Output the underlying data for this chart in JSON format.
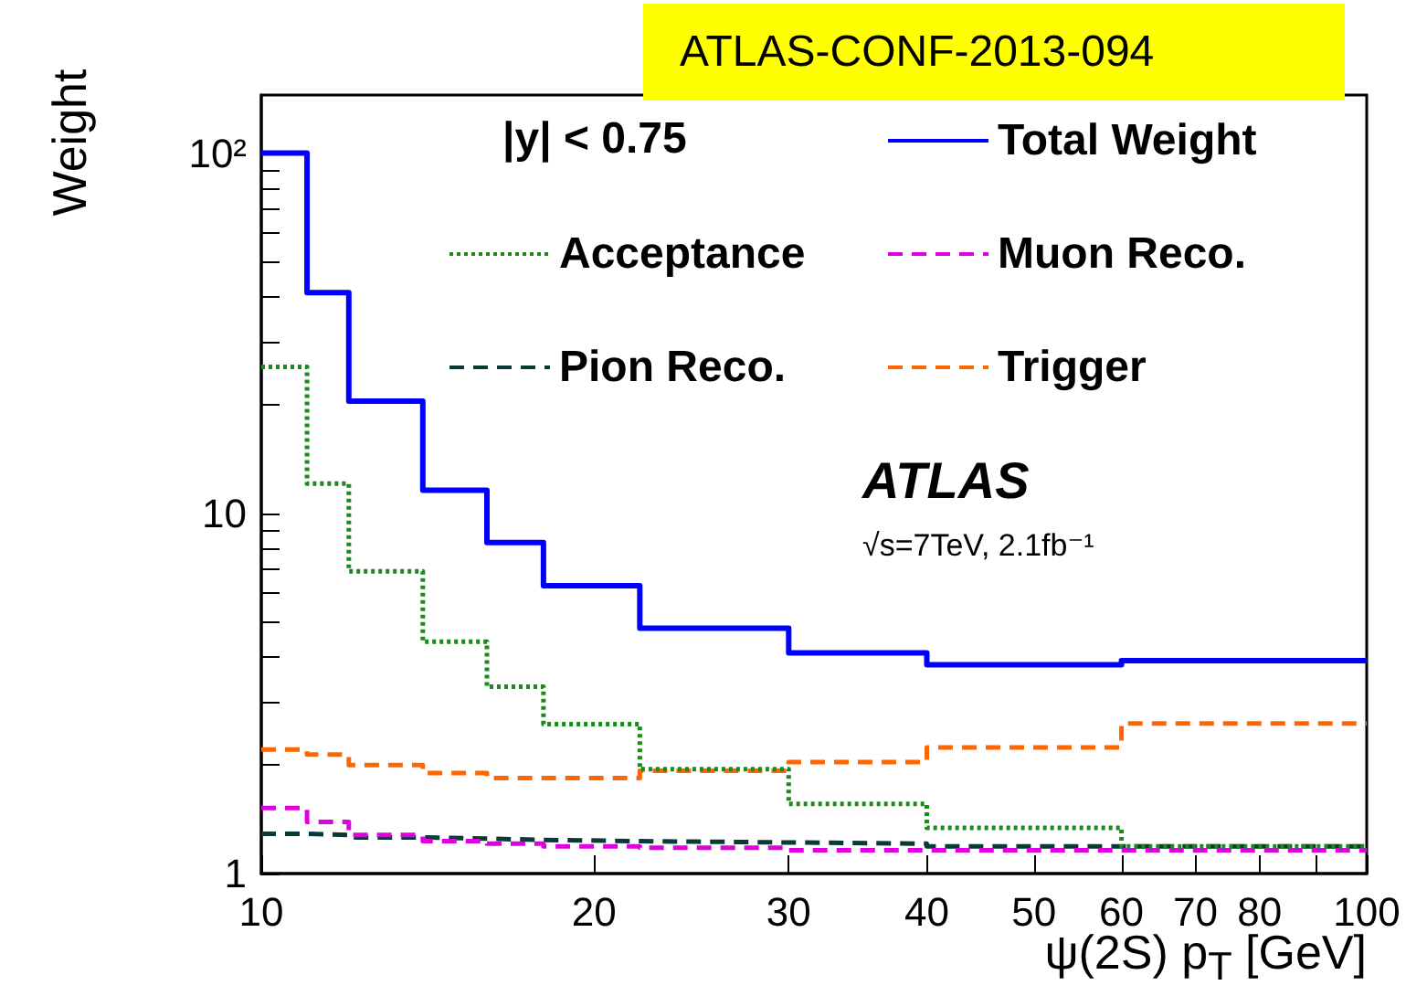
{
  "chart_data": {
    "type": "histogram",
    "xlabel": "ψ(2S) p$_{T}$ [GeV]",
    "ylabel": "Weight",
    "annotations": [
      "ATLAS-CONF-2013-094",
      "|y| < 0.75",
      "ATLAS",
      "√s=7TeV, 2.1fb⁻¹"
    ],
    "bins": [
      10,
      11,
      12,
      14,
      16,
      18,
      22,
      30,
      40,
      60,
      100
    ],
    "series": [
      {
        "name": "Total Weight",
        "color": "#0000ff",
        "line_style": "solid",
        "values": [
          100,
          41,
          20.5,
          11.6,
          8.3,
          6.3,
          4.8,
          4.1,
          3.8,
          3.9
        ]
      },
      {
        "name": "Acceptance",
        "color": "#1a8a1a",
        "line_style": "dotted",
        "values": [
          25.5,
          12.1,
          6.9,
          4.4,
          3.3,
          2.6,
          1.95,
          1.56,
          1.34,
          1.19
        ]
      },
      {
        "name": "Muon Reco.",
        "color": "#e000e0",
        "line_style": "dashed",
        "values": [
          1.52,
          1.39,
          1.28,
          1.23,
          1.21,
          1.19,
          1.18,
          1.16,
          1.16,
          1.16
        ]
      },
      {
        "name": "Pion Reco.",
        "color": "#0a3a36",
        "line_style": "dashed",
        "values": [
          1.29,
          1.28,
          1.26,
          1.25,
          1.24,
          1.23,
          1.22,
          1.21,
          1.19,
          1.19
        ]
      },
      {
        "name": "Trigger",
        "color": "#ff6600",
        "line_style": "dashed",
        "values": [
          2.21,
          2.14,
          2.0,
          1.9,
          1.84,
          1.84,
          1.93,
          2.04,
          2.24,
          2.61
        ]
      }
    ],
    "log": "xy",
    "xlim": [
      10,
      100
    ],
    "ylim": [
      1,
      145
    ],
    "xticks": [
      10,
      20,
      30,
      40,
      50,
      60,
      70,
      80,
      {
        "value": 90,
        "label": null
      },
      100
    ],
    "yticks": [
      1,
      {
        "value": 2,
        "label": null
      },
      {
        "value": 3,
        "label": null
      },
      {
        "value": 4,
        "label": null
      },
      {
        "value": 5,
        "label": null
      },
      {
        "value": 6,
        "label": null
      },
      {
        "value": 7,
        "label": null
      },
      {
        "value": 8,
        "label": null
      },
      {
        "value": 9,
        "label": null
      },
      10,
      {
        "value": 20,
        "label": null
      },
      {
        "value": 30,
        "label": null
      },
      {
        "value": 40,
        "label": null
      },
      {
        "value": 50,
        "label": null
      },
      {
        "value": 60,
        "label": null
      },
      {
        "value": 70,
        "label": null
      },
      {
        "value": 80,
        "label": null
      },
      {
        "value": 90,
        "label": null
      },
      {
        "value": 100,
        "label": "10²"
      }
    ],
    "grid": false,
    "legend": "top right",
    "marker": "none"
  }
}
